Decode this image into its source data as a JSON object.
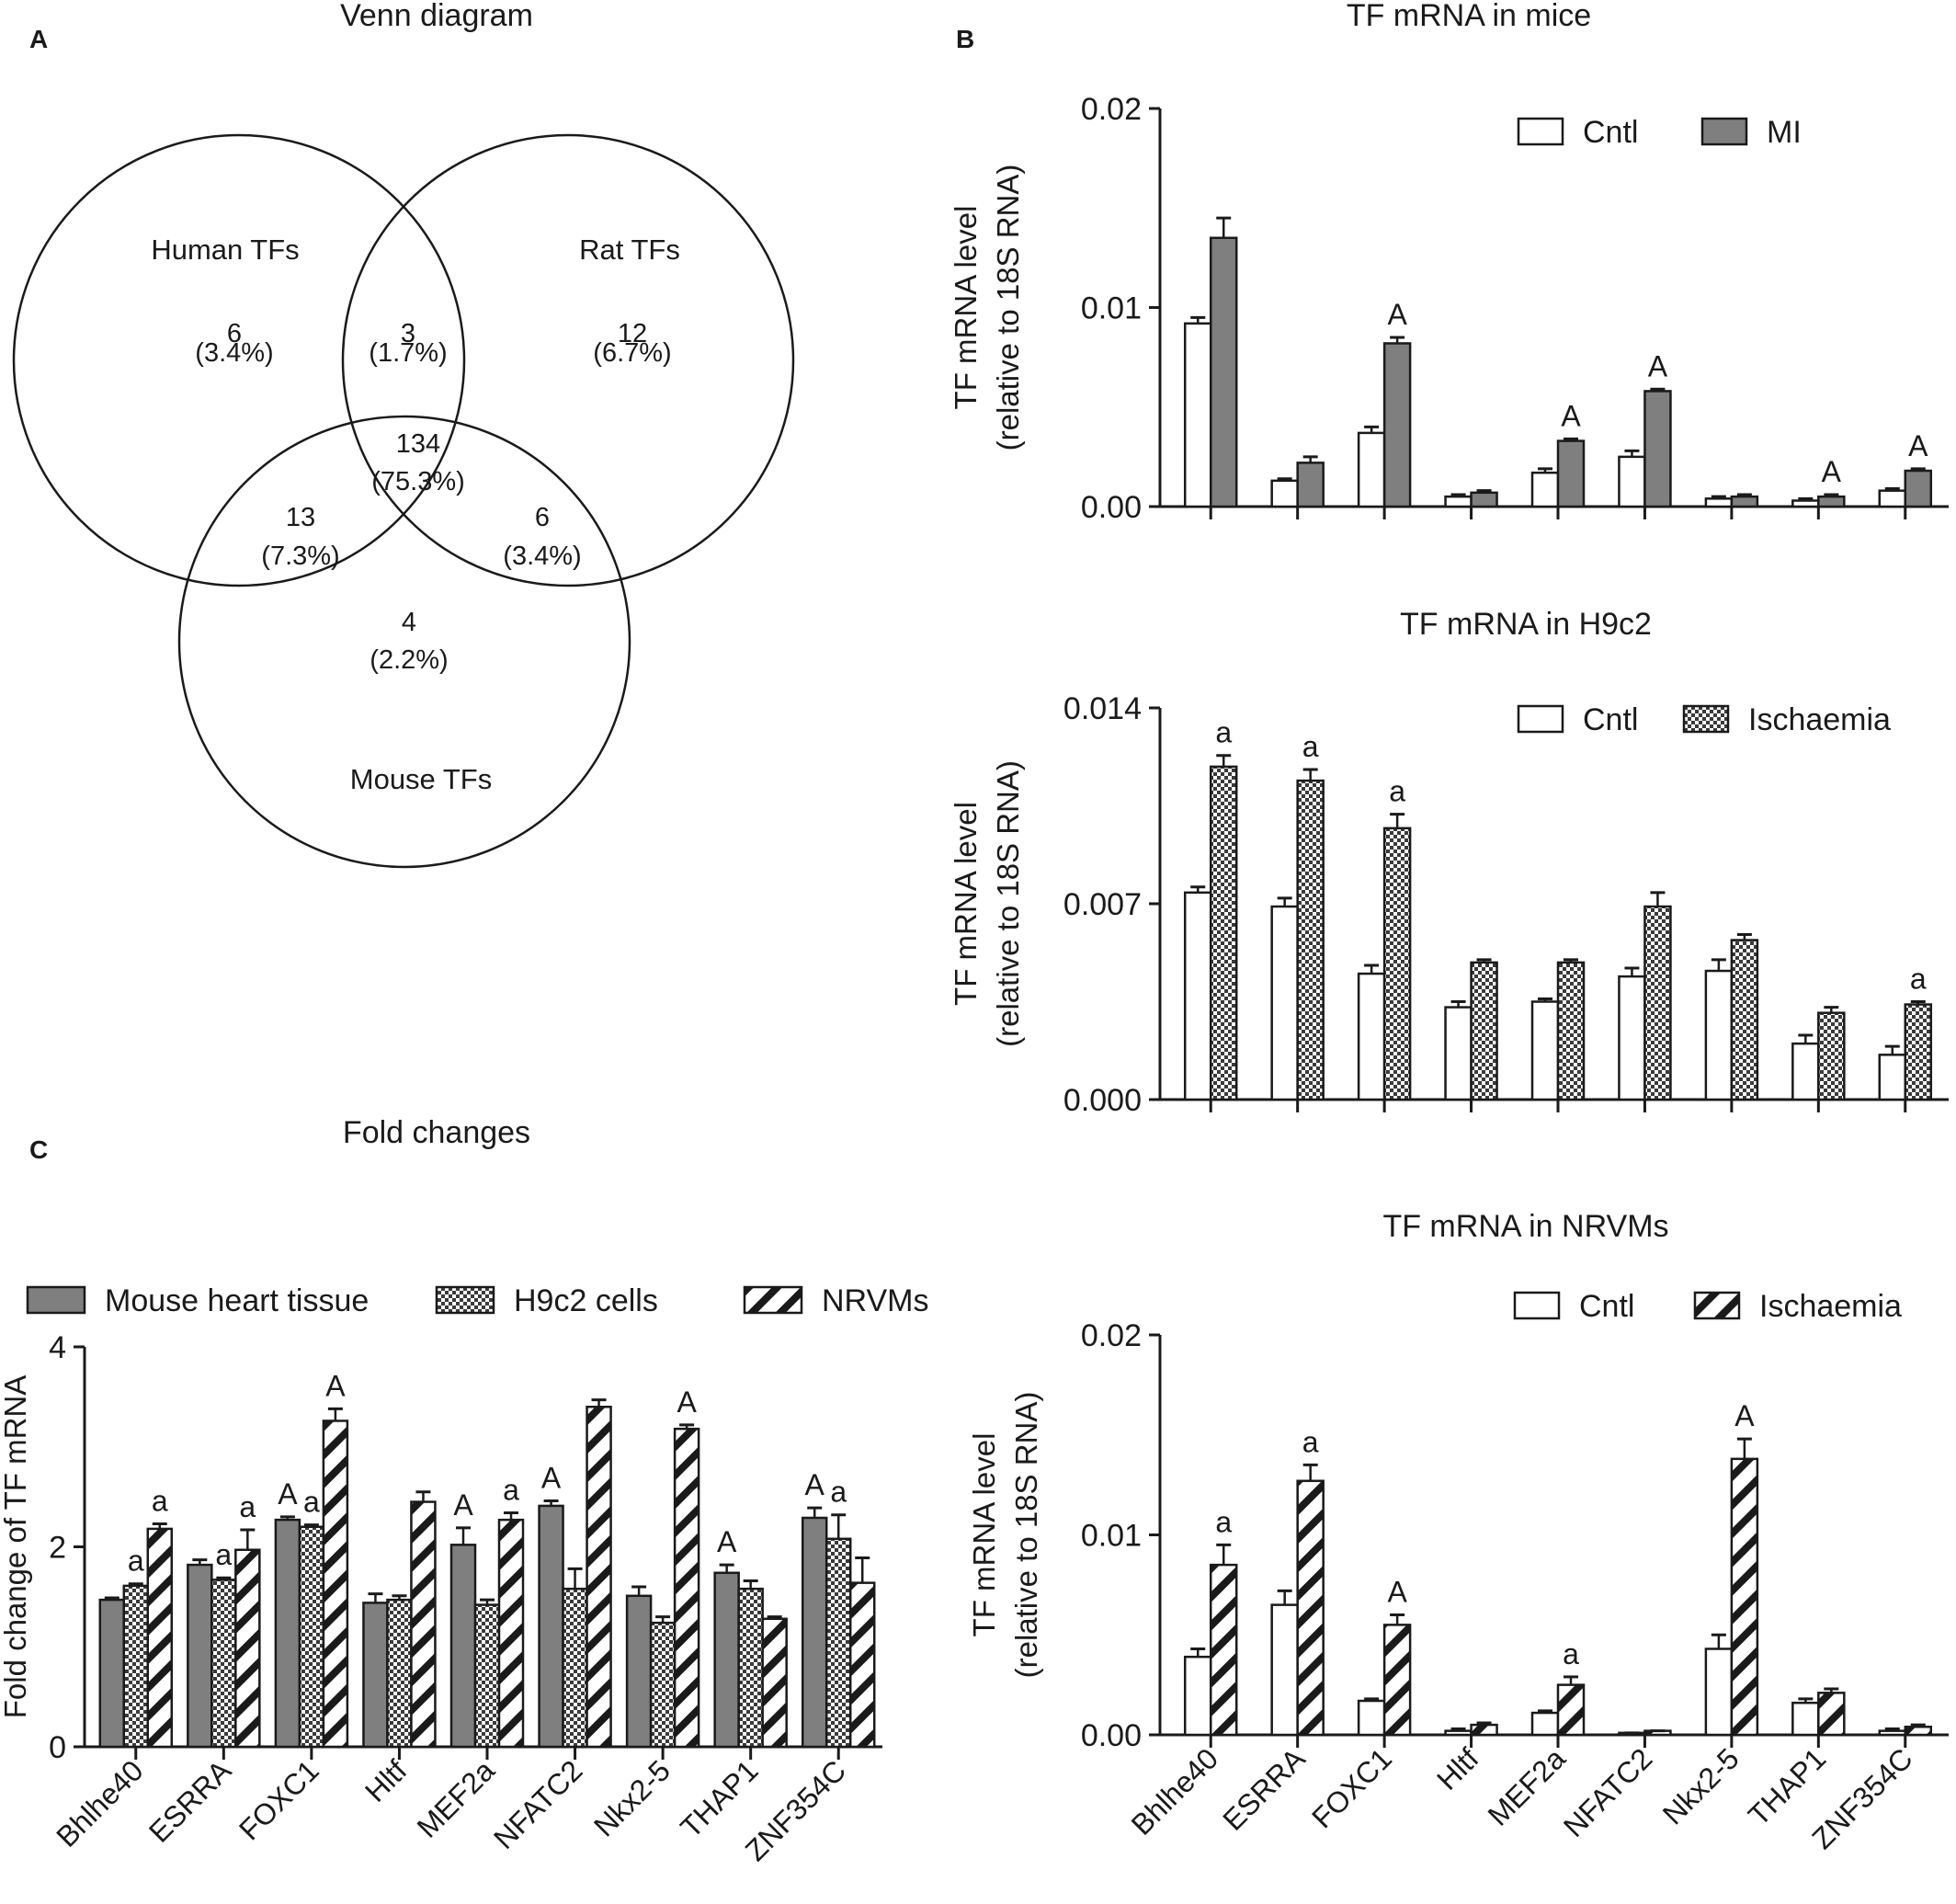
{
  "panel_letters": {
    "a": "A",
    "b": "B",
    "c": "C"
  },
  "venn": {
    "title": "Venn diagram",
    "sets": {
      "human": "Human TFs",
      "rat": "Rat TFs",
      "mouse": "Mouse TFs"
    },
    "regions": {
      "human_only": {
        "count": "6",
        "pct": "(3.4%)"
      },
      "human_rat": {
        "count": "3",
        "pct": "(1.7%)"
      },
      "rat_only": {
        "count": "12",
        "pct": "(6.7%)"
      },
      "all_three": {
        "count": "134",
        "pct": "(75.3%)"
      },
      "human_mouse": {
        "count": "13",
        "pct": "(7.3%)"
      },
      "rat_mouse": {
        "count": "6",
        "pct": "(3.4%)"
      },
      "mouse_only": {
        "count": "4",
        "pct": "(2.2%)"
      }
    }
  },
  "chart_data": [
    {
      "id": "mice",
      "type": "bar",
      "title": "TF mRNA in mice",
      "ylabel": "TF mRNA level",
      "ylabel2": "(relative to 18S RNA)",
      "ylim": [
        0,
        0.02
      ],
      "yticks": [
        "0.00",
        "0.01",
        "0.02"
      ],
      "categories": [
        "Bhlhe40",
        "ESRRA",
        "FOXC1",
        "Hltf",
        "MEF2a",
        "NFATC2",
        "Nkx2-5",
        "THAP1",
        "ZNF354C"
      ],
      "show_category_labels": false,
      "legend": "top-right",
      "series": [
        {
          "name": "Cntl",
          "pattern": "white",
          "values": [
            0.0092,
            0.0013,
            0.0037,
            0.0005,
            0.0017,
            0.0025,
            0.0004,
            0.0003,
            0.0008
          ],
          "errors": [
            0.0003,
            0.0001,
            0.0003,
            0.0001,
            0.0002,
            0.0003,
            0.0001,
            0.0001,
            0.0001
          ]
        },
        {
          "name": "MI",
          "pattern": "gray",
          "values": [
            0.0135,
            0.0022,
            0.0082,
            0.0007,
            0.0033,
            0.0058,
            0.0005,
            0.0005,
            0.0018
          ],
          "errors": [
            0.001,
            0.0003,
            0.0003,
            0.0001,
            0.0001,
            0.0001,
            0.0001,
            0.0001,
            0.0001
          ]
        }
      ],
      "annotations": [
        {
          "category": 2,
          "label": "A"
        },
        {
          "category": 4,
          "label": "A"
        },
        {
          "category": 5,
          "label": "A"
        },
        {
          "category": 7,
          "label": "A"
        },
        {
          "category": 8,
          "label": "A"
        }
      ],
      "axis_color": "#1a1a1a"
    },
    {
      "id": "h9c2",
      "type": "bar",
      "title": "TF mRNA in H9c2",
      "ylabel": "TF mRNA level",
      "ylabel2": "(relative to 18S RNA)",
      "ylim": [
        0,
        0.014
      ],
      "yticks": [
        "0.000",
        "0.007",
        "0.014"
      ],
      "categories": [
        "Bhlhe40",
        "ESRRA",
        "FOXC1",
        "Hltf",
        "MEF2a",
        "NFATC2",
        "Nkx2-5",
        "THAP1",
        "ZNF354C"
      ],
      "show_category_labels": false,
      "legend": "top-right",
      "series": [
        {
          "name": "Cntl",
          "pattern": "white",
          "values": [
            0.0074,
            0.0069,
            0.0045,
            0.0033,
            0.0035,
            0.0044,
            0.0046,
            0.002,
            0.0016
          ],
          "errors": [
            0.0002,
            0.0003,
            0.0003,
            0.0002,
            0.0001,
            0.0003,
            0.0004,
            0.0003,
            0.0003
          ]
        },
        {
          "name": "Ischaemia",
          "pattern": "checker",
          "values": [
            0.0119,
            0.0114,
            0.0097,
            0.0049,
            0.0049,
            0.0069,
            0.0057,
            0.0031,
            0.0034
          ],
          "errors": [
            0.0004,
            0.0004,
            0.0005,
            0.0001,
            0.0001,
            0.0005,
            0.0002,
            0.0002,
            0.0001
          ]
        }
      ],
      "annotations": [
        {
          "category": 0,
          "label": "a"
        },
        {
          "category": 1,
          "label": "a"
        },
        {
          "category": 2,
          "label": "a"
        },
        {
          "category": 8,
          "label": "a"
        }
      ],
      "axis_color": "#1a1a1a"
    },
    {
      "id": "nrvms",
      "type": "bar",
      "title": "TF mRNA in NRVMs",
      "ylabel": "TF mRNA level",
      "ylabel2": "(relative to 18S RNA)",
      "ylim": [
        0,
        0.02
      ],
      "yticks": [
        "0.00",
        "0.01",
        "0.02"
      ],
      "categories": [
        "Bhlhe40",
        "ESRRA",
        "FOXC1",
        "Hltf",
        "MEF2a",
        "NFATC2",
        "Nkx2-5",
        "THAP1",
        "ZNF354C"
      ],
      "show_category_labels": true,
      "legend": "top-right",
      "series": [
        {
          "name": "Cntl",
          "pattern": "white",
          "values": [
            0.0039,
            0.0065,
            0.0017,
            0.0002,
            0.0011,
            0.0001,
            0.0043,
            0.0016,
            0.0002
          ],
          "errors": [
            0.0004,
            0.0007,
            0.0001,
            0.0001,
            0.0001,
            0.0,
            0.0007,
            0.0002,
            0.0001
          ]
        },
        {
          "name": "Ischaemia",
          "pattern": "hatch",
          "values": [
            0.0085,
            0.0127,
            0.0055,
            0.0005,
            0.0025,
            0.0002,
            0.0138,
            0.0021,
            0.0004
          ],
          "errors": [
            0.001,
            0.0008,
            0.0005,
            0.0001,
            0.0004,
            0.0,
            0.001,
            0.0002,
            0.0001
          ]
        }
      ],
      "annotations": [
        {
          "category": 0,
          "label": "a"
        },
        {
          "category": 1,
          "label": "a"
        },
        {
          "category": 2,
          "label": "A"
        },
        {
          "category": 4,
          "label": "a"
        },
        {
          "category": 6,
          "label": "A"
        }
      ],
      "axis_color": "#1a1a1a"
    },
    {
      "id": "fold",
      "type": "bar",
      "title": "Fold changes",
      "ylabel": "Fold change of TF mRNA",
      "ylim": [
        0,
        4
      ],
      "yticks": [
        "0",
        "2",
        "4"
      ],
      "categories": [
        "Bhlhe40",
        "ESRRA",
        "FOXC1",
        "Hltf",
        "MEF2a",
        "NFATC2",
        "Nkx2-5",
        "THAP1",
        "ZNF354C"
      ],
      "show_category_labels": true,
      "legend": "top",
      "series": [
        {
          "name": "Mouse heart tissue",
          "pattern": "gray",
          "values": [
            1.47,
            1.82,
            2.27,
            1.44,
            2.02,
            2.41,
            1.51,
            1.74,
            2.29
          ],
          "errors": [
            0.02,
            0.05,
            0.03,
            0.09,
            0.17,
            0.05,
            0.09,
            0.08,
            0.1
          ]
        },
        {
          "name": "H9c2 cells",
          "pattern": "checker",
          "values": [
            1.61,
            1.67,
            2.2,
            1.47,
            1.42,
            1.58,
            1.24,
            1.58,
            2.08
          ],
          "errors": [
            0.02,
            0.02,
            0.02,
            0.04,
            0.05,
            0.2,
            0.06,
            0.08,
            0.24
          ]
        },
        {
          "name": "NRVMs",
          "pattern": "hatch",
          "values": [
            2.18,
            1.97,
            3.26,
            2.45,
            2.27,
            3.4,
            3.18,
            1.28,
            1.64
          ],
          "errors": [
            0.05,
            0.2,
            0.12,
            0.1,
            0.07,
            0.07,
            0.04,
            0.02,
            0.25
          ]
        }
      ],
      "annotations": [
        {
          "category": 0,
          "series": 1,
          "label": "a"
        },
        {
          "category": 0,
          "series": 2,
          "label": "a"
        },
        {
          "category": 1,
          "series": 1,
          "label": "a"
        },
        {
          "category": 1,
          "series": 2,
          "label": "a"
        },
        {
          "category": 2,
          "series": 0,
          "label": "A"
        },
        {
          "category": 2,
          "series": 1,
          "label": "a"
        },
        {
          "category": 2,
          "series": 2,
          "label": "A"
        },
        {
          "category": 3,
          "series": 2,
          "label": ""
        },
        {
          "category": 4,
          "series": 0,
          "label": "A"
        },
        {
          "category": 4,
          "series": 2,
          "label": "a"
        },
        {
          "category": 5,
          "series": 0,
          "label": "A"
        },
        {
          "category": 6,
          "series": 2,
          "label": "A"
        },
        {
          "category": 7,
          "series": 0,
          "label": "A"
        },
        {
          "category": 8,
          "series": 0,
          "label": "A"
        },
        {
          "category": 8,
          "series": 1,
          "label": "a"
        }
      ],
      "axis_color": "#1a1a1a"
    }
  ],
  "colors": {
    "gray_fill": "#7f7f7f",
    "ink": "#1a1a1a",
    "white": "#ffffff"
  }
}
